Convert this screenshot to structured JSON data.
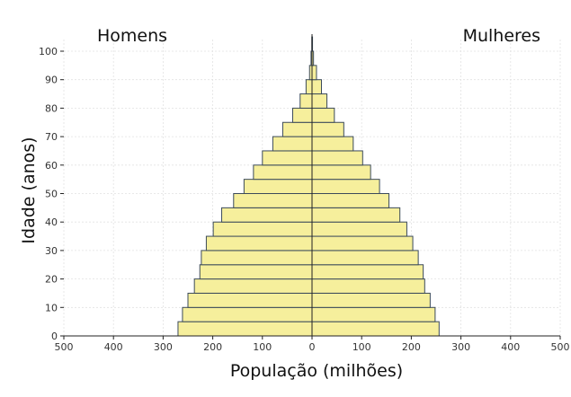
{
  "chart_data": {
    "type": "bar",
    "orientation": "horizontal",
    "subtype": "population-pyramid",
    "xlabel": "População (milhões)",
    "ylabel": "Idade (anos)",
    "left_label": "Homens",
    "right_label": "Mulheres",
    "xlim": [
      -500,
      500
    ],
    "ylim": [
      0,
      100
    ],
    "x_ticks": [
      "500",
      "400",
      "300",
      "200",
      "100",
      "0",
      "100",
      "200",
      "300",
      "400",
      "500"
    ],
    "y_ticks": [
      "0",
      "10",
      "20",
      "30",
      "40",
      "50",
      "60",
      "70",
      "80",
      "90",
      "100"
    ],
    "grid": true,
    "bar_color": "#f6ef9c",
    "edge_color": "#3b4a5a",
    "age_groups": [
      {
        "age_start": 0,
        "age_end": 5,
        "men": 270,
        "women": 256
      },
      {
        "age_start": 5,
        "age_end": 10,
        "men": 261,
        "women": 248
      },
      {
        "age_start": 10,
        "age_end": 15,
        "men": 250,
        "women": 238
      },
      {
        "age_start": 15,
        "age_end": 20,
        "men": 237,
        "women": 227
      },
      {
        "age_start": 20,
        "age_end": 25,
        "men": 226,
        "women": 224
      },
      {
        "age_start": 25,
        "age_end": 30,
        "men": 223,
        "women": 214
      },
      {
        "age_start": 30,
        "age_end": 35,
        "men": 213,
        "women": 203
      },
      {
        "age_start": 35,
        "age_end": 40,
        "men": 199,
        "women": 191
      },
      {
        "age_start": 40,
        "age_end": 45,
        "men": 182,
        "women": 177
      },
      {
        "age_start": 45,
        "age_end": 50,
        "men": 158,
        "women": 155
      },
      {
        "age_start": 50,
        "age_end": 55,
        "men": 137,
        "women": 136
      },
      {
        "age_start": 55,
        "age_end": 60,
        "men": 118,
        "women": 118
      },
      {
        "age_start": 60,
        "age_end": 65,
        "men": 100,
        "women": 102
      },
      {
        "age_start": 65,
        "age_end": 70,
        "men": 79,
        "women": 83
      },
      {
        "age_start": 70,
        "age_end": 75,
        "men": 59,
        "women": 64
      },
      {
        "age_start": 75,
        "age_end": 80,
        "men": 39,
        "women": 45
      },
      {
        "age_start": 80,
        "age_end": 85,
        "men": 24,
        "women": 30
      },
      {
        "age_start": 85,
        "age_end": 90,
        "men": 12,
        "women": 19
      },
      {
        "age_start": 90,
        "age_end": 95,
        "men": 5,
        "women": 9
      },
      {
        "age_start": 95,
        "age_end": 100,
        "men": 2,
        "women": 3
      },
      {
        "age_start": 100,
        "age_end": 105,
        "men": 0.5,
        "women": 1
      }
    ]
  }
}
